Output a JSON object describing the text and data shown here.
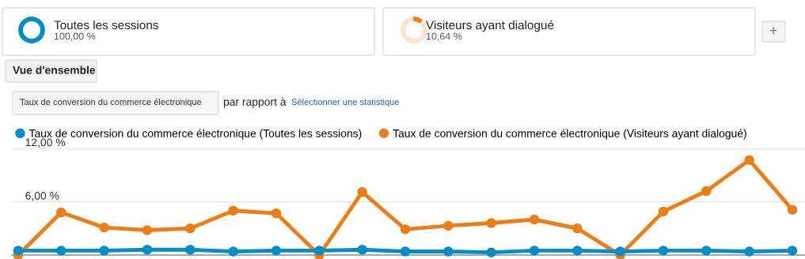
{
  "chart_data": {
    "type": "line",
    "categories": [
      null,
      null,
      null,
      null,
      null,
      null,
      null,
      null,
      null,
      null,
      null,
      null,
      null,
      null,
      null,
      null,
      null,
      null,
      null
    ],
    "series": [
      {
        "name": "Taux de conversion du commerce électronique (Toutes les sessions)",
        "color": "#058dc7",
        "values": [
          0.5,
          0.5,
          0.5,
          0.6,
          0.6,
          0.4,
          0.5,
          0.5,
          0.6,
          0.4,
          0.4,
          0.3,
          0.5,
          0.5,
          0.4,
          0.5,
          0.5,
          0.4,
          0.5
        ]
      },
      {
        "name": "Taux de conversion du commerce électronique (Visiteurs ayant dialogué)",
        "color": "#ed7e17",
        "values": [
          0,
          4.8,
          3.1,
          2.8,
          3.0,
          5.0,
          4.7,
          0,
          7.1,
          2.9,
          3.3,
          3.6,
          4.0,
          3.0,
          0,
          4.9,
          7.2,
          10.7,
          5.1
        ]
      }
    ],
    "ylim": [
      0,
      12
    ],
    "yticks": [
      {
        "value": 6,
        "label": "6,00 %"
      },
      {
        "value": 12,
        "label": "12,00 %"
      }
    ],
    "grid": "y",
    "legend": "top",
    "marker": "circle",
    "line_style": "solid",
    "annotations": [
      "Toutes les sessions",
      "100,00 %",
      "Visiteurs ayant dialogué",
      "10,64 %",
      "+",
      "Vue d'ensemble",
      "Taux de conversion du commerce électronique",
      "par rapport à",
      "Sélectionner une statistique"
    ]
  }
}
